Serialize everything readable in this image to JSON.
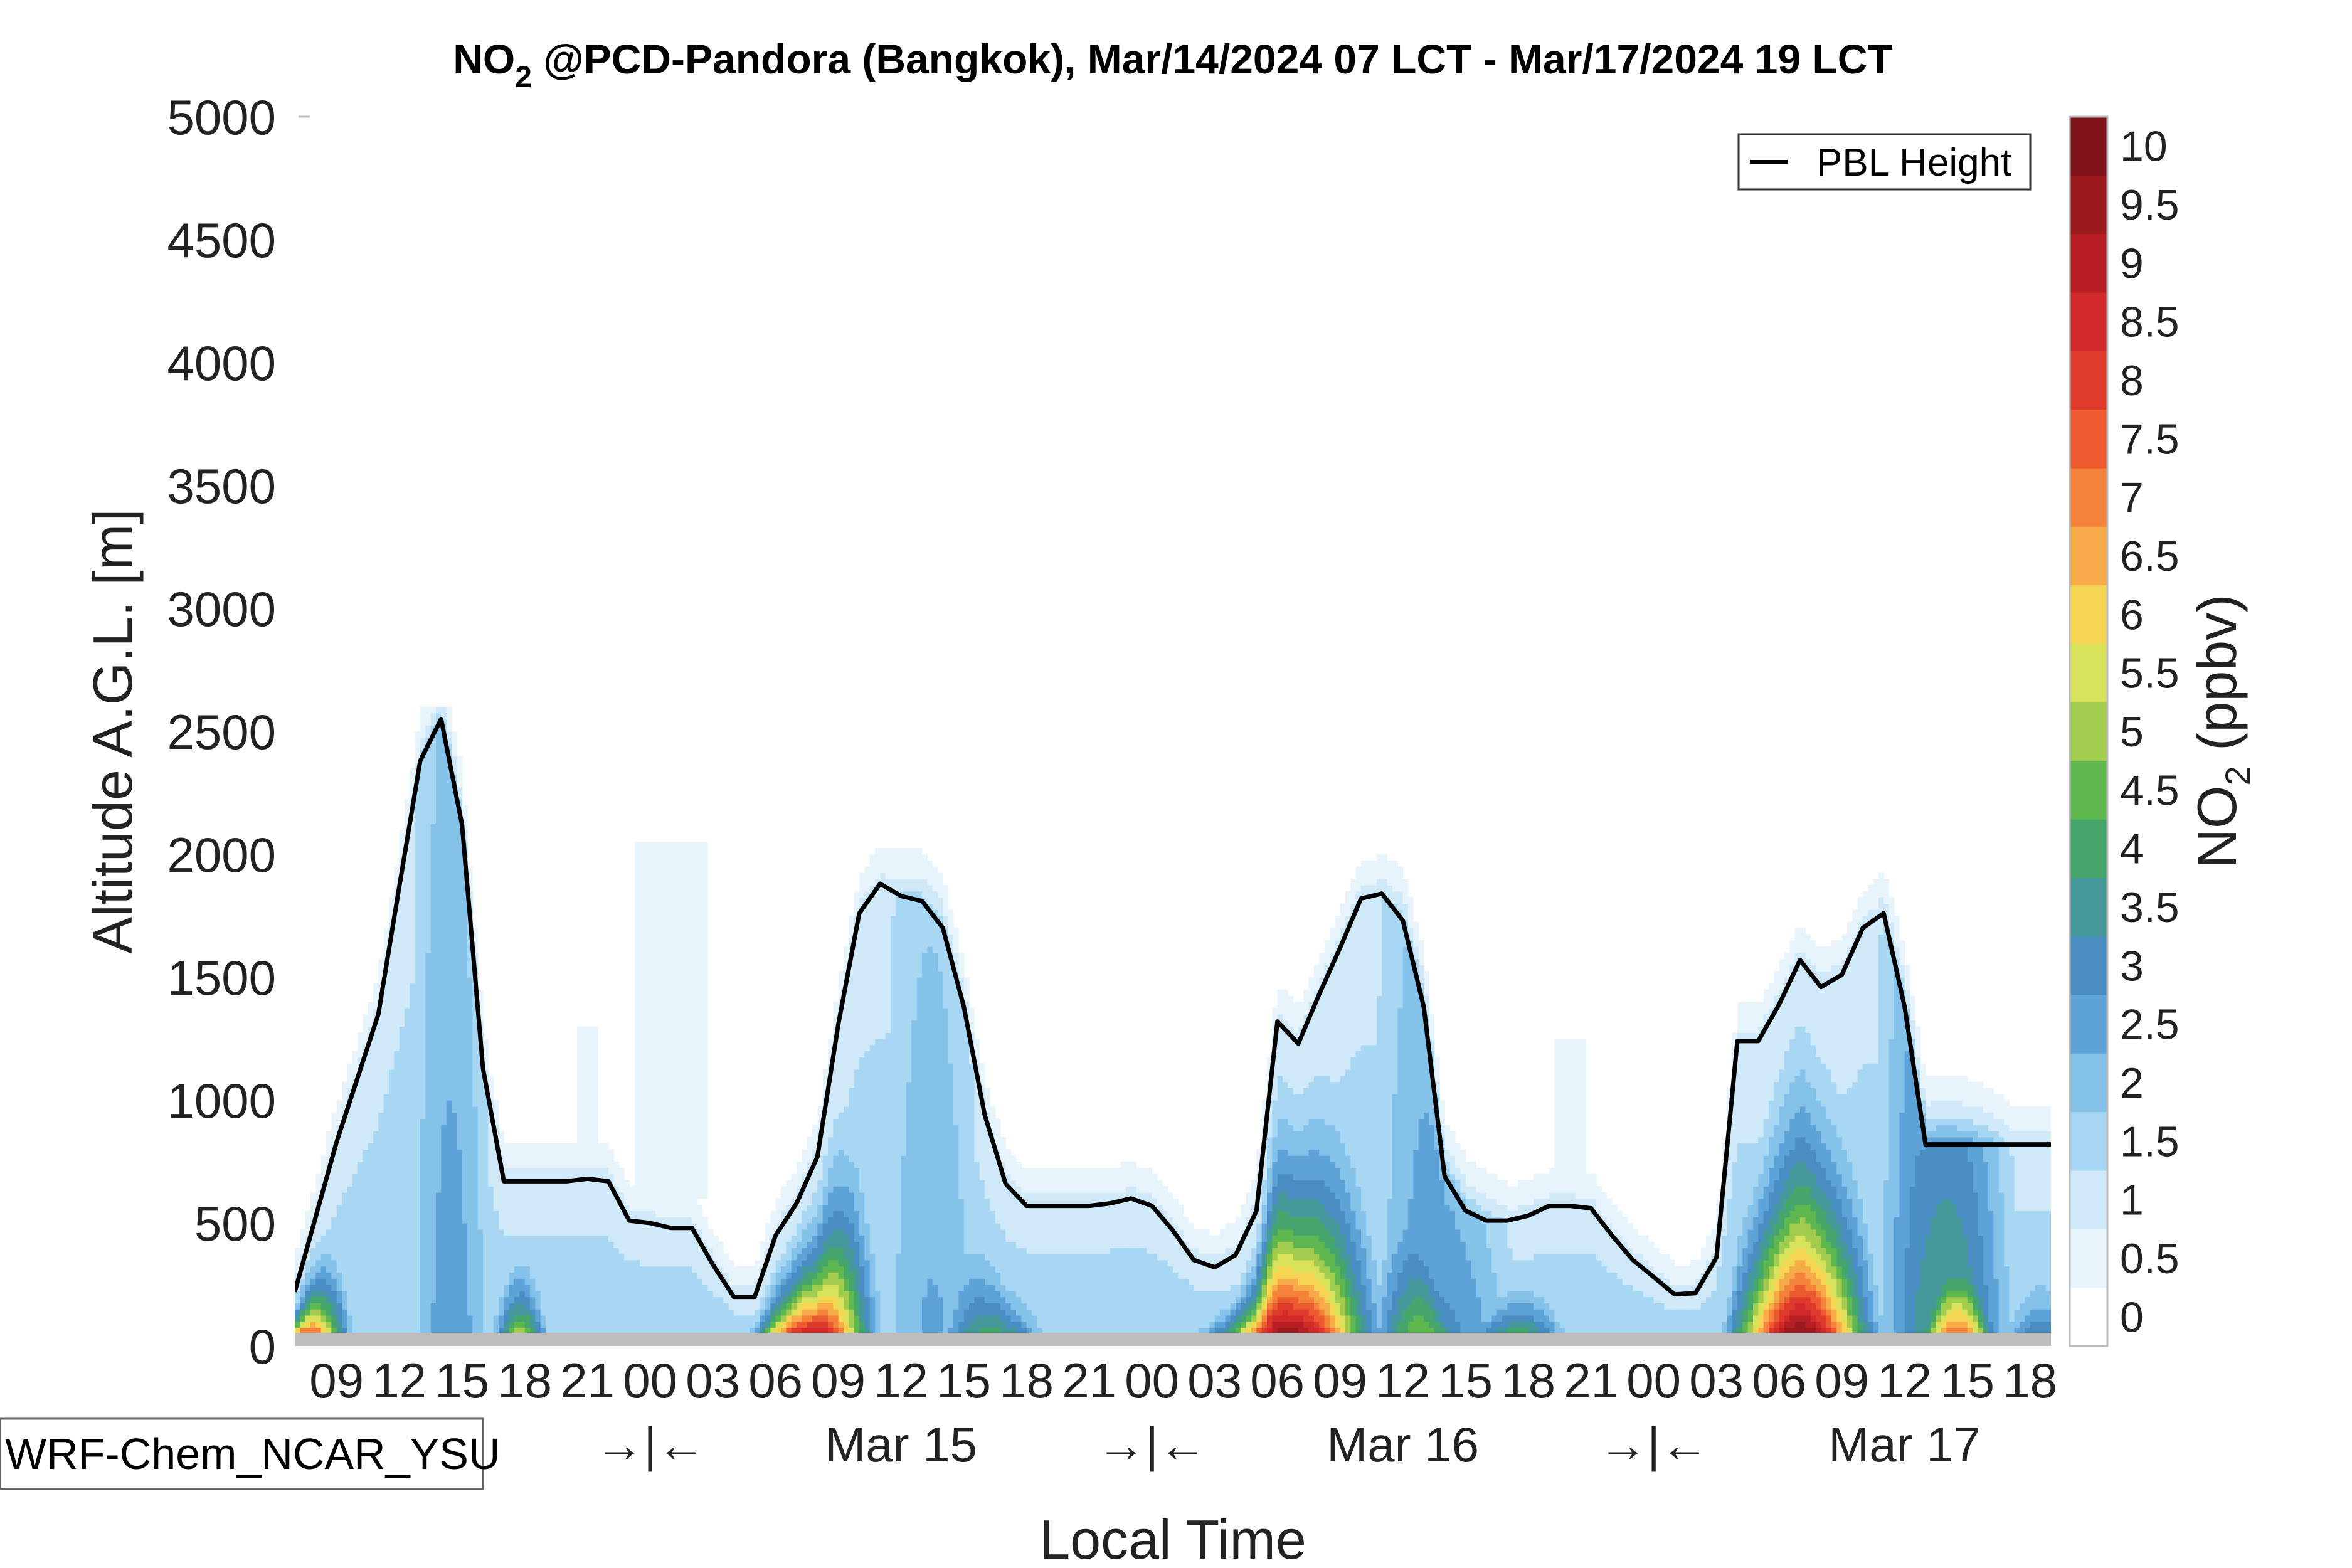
{
  "chart_data": {
    "type": "heatmap",
    "title": "NO",
    "title_sub": "2",
    "title_rest": " @PCD-Pandora (Bangkok), Mar/14/2024 07 LCT - Mar/17/2024 19 LCT",
    "xlabel": "Local Time",
    "ylabel": "Altitude A.G.L. [m]",
    "ylim": [
      0,
      5000
    ],
    "y_ticks": [
      0,
      500,
      1000,
      1500,
      2000,
      2500,
      3000,
      3500,
      4000,
      4500,
      5000
    ],
    "x_range_hours": [
      7,
      91
    ],
    "x_hour_ticks": [
      {
        "h": 9,
        "label": "09"
      },
      {
        "h": 12,
        "label": "12"
      },
      {
        "h": 15,
        "label": "15"
      },
      {
        "h": 18,
        "label": "18"
      },
      {
        "h": 21,
        "label": "21"
      },
      {
        "h": 24,
        "label": "00"
      },
      {
        "h": 27,
        "label": "03"
      },
      {
        "h": 30,
        "label": "06"
      },
      {
        "h": 33,
        "label": "09"
      },
      {
        "h": 36,
        "label": "12"
      },
      {
        "h": 39,
        "label": "15"
      },
      {
        "h": 42,
        "label": "18"
      },
      {
        "h": 45,
        "label": "21"
      },
      {
        "h": 48,
        "label": "00"
      },
      {
        "h": 51,
        "label": "03"
      },
      {
        "h": 54,
        "label": "06"
      },
      {
        "h": 57,
        "label": "09"
      },
      {
        "h": 60,
        "label": "12"
      },
      {
        "h": 63,
        "label": "15"
      },
      {
        "h": 66,
        "label": "18"
      },
      {
        "h": 69,
        "label": "21"
      },
      {
        "h": 72,
        "label": "00"
      },
      {
        "h": 75,
        "label": "03"
      },
      {
        "h": 78,
        "label": "06"
      },
      {
        "h": 81,
        "label": "09"
      },
      {
        "h": 84,
        "label": "12"
      },
      {
        "h": 87,
        "label": "15"
      },
      {
        "h": 90,
        "label": "18"
      }
    ],
    "day_marks": [
      {
        "h": 24,
        "label": "→|←"
      },
      {
        "h": 36,
        "label": "Mar 15"
      },
      {
        "h": 48,
        "label": "→|←"
      },
      {
        "h": 60,
        "label": "Mar 16"
      },
      {
        "h": 72,
        "label": "→|←"
      },
      {
        "h": 84,
        "label": "Mar 17"
      }
    ],
    "colorbar": {
      "label": "NO",
      "label_sub": "2",
      "label_rest": " (ppbv)",
      "ticks": [
        "0",
        "0.5",
        "1",
        "1.5",
        "2",
        "2.5",
        "3",
        "3.5",
        "4",
        "4.5",
        "5",
        "5.5",
        "6",
        "6.5",
        "7",
        "7.5",
        "8",
        "8.5",
        "9",
        "9.5",
        "10"
      ],
      "colors": [
        "#ffffff",
        "#e8f4fb",
        "#cfe9f8",
        "#a7d7f3",
        "#84c2ea",
        "#5ea3d8",
        "#4a8dc3",
        "#46999a",
        "#44a66a",
        "#5fb84f",
        "#a1cc4e",
        "#d7e25a",
        "#f6d552",
        "#f7ab48",
        "#f5823a",
        "#ec5a30",
        "#dd3a2c",
        "#d22a2a",
        "#b81f24",
        "#9b1a1e",
        "#80141a"
      ]
    },
    "pbl_height": {
      "legend": "PBL Height",
      "hours": [
        7,
        9,
        11,
        12,
        13,
        14,
        15,
        16,
        17,
        18,
        20,
        21,
        22,
        23,
        24,
        25,
        26,
        27,
        28,
        29,
        30,
        31,
        32,
        33,
        34,
        35,
        36,
        37,
        38,
        39,
        40,
        41,
        42,
        43,
        44,
        45,
        46,
        47,
        48,
        49,
        50,
        51,
        52,
        53,
        54,
        55,
        56,
        57,
        58,
        59,
        60,
        61,
        62,
        63,
        64,
        65,
        66,
        67,
        68,
        69,
        70,
        71,
        72,
        73,
        74,
        75,
        76,
        77,
        78,
        79,
        80,
        81,
        82,
        83,
        84,
        85,
        86,
        87,
        88,
        89,
        90,
        91
      ],
      "values": [
        220,
        830,
        1350,
        1870,
        2380,
        2550,
        2120,
        1130,
        670,
        670,
        670,
        680,
        670,
        510,
        500,
        480,
        480,
        330,
        200,
        200,
        450,
        580,
        770,
        1310,
        1760,
        1880,
        1830,
        1810,
        1700,
        1380,
        940,
        660,
        570,
        570,
        570,
        570,
        580,
        600,
        570,
        470,
        350,
        320,
        370,
        550,
        1320,
        1230,
        1430,
        1620,
        1820,
        1840,
        1730,
        1380,
        690,
        550,
        510,
        510,
        530,
        570,
        570,
        560,
        450,
        350,
        280,
        210,
        215,
        360,
        1240,
        1240,
        1390,
        1570,
        1460,
        1510,
        1700,
        1760,
        1380,
        820,
        820,
        820,
        820,
        820,
        820,
        820
      ]
    },
    "model_label": "WRF-Chem_NCAR_YSU"
  }
}
